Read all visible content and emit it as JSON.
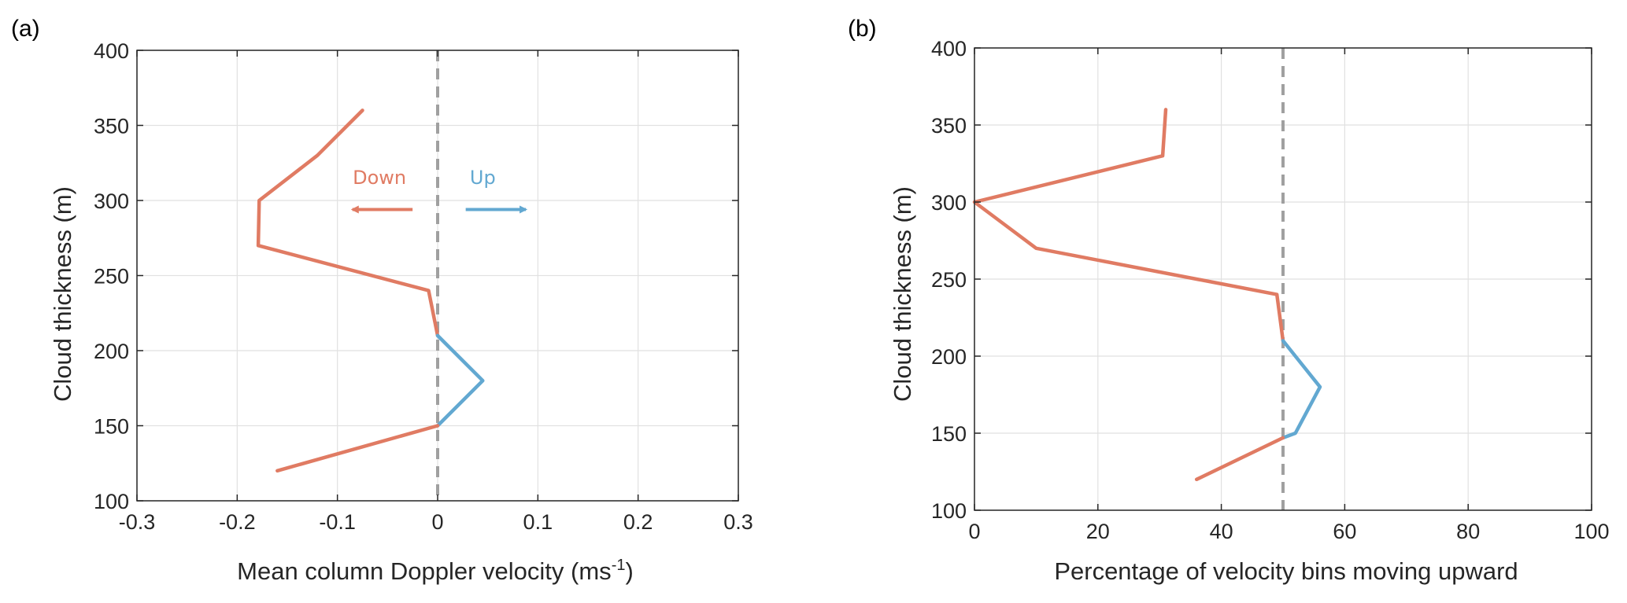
{
  "colors": {
    "down": "#E07B63",
    "up": "#62A8D1",
    "zero_line": "#A0A0A0",
    "axis": "#262626",
    "grid": "#E1E1E1"
  },
  "chart_data": [
    {
      "type": "line",
      "panel_label": "(a)",
      "xlabel": "Mean column Doppler velocity (ms",
      "xlabel_sup": "-1",
      "xlabel_close": ")",
      "ylabel": "Cloud thickness (m)",
      "xlim": [
        -0.3,
        0.3
      ],
      "ylim": [
        100,
        400
      ],
      "xticks": [
        -0.3,
        -0.2,
        -0.1,
        0,
        0.1,
        0.2,
        0.3
      ],
      "xtick_labels": [
        "-0.3",
        "-0.2",
        "-0.1",
        "0",
        "0.1",
        "0.2",
        "0.3"
      ],
      "yticks": [
        100,
        150,
        200,
        250,
        300,
        350,
        400
      ],
      "ytick_labels": [
        "100",
        "150",
        "200",
        "250",
        "300",
        "350",
        "400"
      ],
      "grid": true,
      "reference_line_x": 0,
      "series": [
        {
          "color_key": "down",
          "points": [
            [
              -0.075,
              360
            ],
            [
              -0.12,
              330
            ],
            [
              -0.178,
              300
            ],
            [
              -0.179,
              270
            ],
            [
              -0.009,
              240
            ],
            [
              0,
              210
            ]
          ]
        },
        {
          "color_key": "up",
          "points": [
            [
              0,
              210
            ],
            [
              0.045,
              180
            ],
            [
              0,
              150
            ]
          ]
        },
        {
          "color_key": "down",
          "points": [
            [
              0,
              150
            ],
            [
              -0.16,
              120
            ]
          ]
        }
      ],
      "annotations": [
        {
          "text": "Down",
          "color_key": "down",
          "x": -0.058,
          "y": 311,
          "arrow_from": -0.025,
          "arrow_to": -0.085,
          "arrow_y": 294
        },
        {
          "text": "Up",
          "color_key": "up",
          "x": 0.045,
          "y": 311,
          "arrow_from": 0.028,
          "arrow_to": 0.088,
          "arrow_y": 294
        }
      ]
    },
    {
      "type": "line",
      "panel_label": "(b)",
      "xlabel": "Percentage of velocity bins moving upward",
      "ylabel": "Cloud thickness (m)",
      "xlim": [
        0,
        100
      ],
      "ylim": [
        100,
        400
      ],
      "xticks": [
        0,
        20,
        40,
        60,
        80,
        100
      ],
      "xtick_labels": [
        "0",
        "20",
        "40",
        "60",
        "80",
        "100"
      ],
      "yticks": [
        100,
        150,
        200,
        250,
        300,
        350,
        400
      ],
      "ytick_labels": [
        "100",
        "150",
        "200",
        "250",
        "300",
        "350",
        "400"
      ],
      "grid": true,
      "reference_line_x": 50,
      "series": [
        {
          "color_key": "down",
          "points": [
            [
              31,
              360
            ],
            [
              30.5,
              330
            ],
            [
              0,
              300
            ],
            [
              10,
              270
            ],
            [
              49,
              240
            ],
            [
              50,
              210
            ]
          ]
        },
        {
          "color_key": "up",
          "points": [
            [
              50,
              210
            ],
            [
              56,
              180
            ],
            [
              52,
              150
            ],
            [
              50,
              147
            ]
          ]
        },
        {
          "color_key": "down",
          "points": [
            [
              50,
              147
            ],
            [
              36,
              120
            ]
          ]
        }
      ]
    }
  ]
}
